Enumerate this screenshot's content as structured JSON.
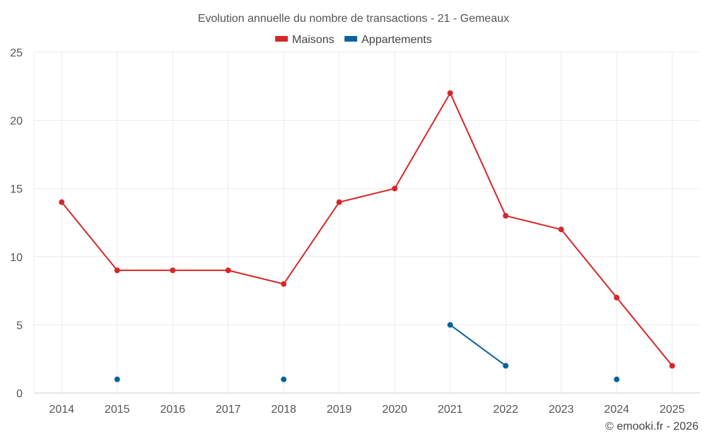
{
  "chart_data": {
    "type": "line",
    "title": "Evolution annuelle du nombre de transactions - 21 - Gemeaux",
    "categories": [
      "2014",
      "2015",
      "2016",
      "2017",
      "2018",
      "2019",
      "2020",
      "2021",
      "2022",
      "2023",
      "2024",
      "2025"
    ],
    "ylim": [
      0,
      25
    ],
    "yticks": [
      0,
      5,
      10,
      15,
      20,
      25
    ],
    "grid": true,
    "legend_position": "top-center",
    "series": [
      {
        "name": "Maisons",
        "color": "#d62728",
        "values": [
          14,
          9,
          9,
          9,
          8,
          14,
          15,
          22,
          13,
          12,
          7,
          2
        ]
      },
      {
        "name": "Appartements",
        "color": "#06639b",
        "values": [
          null,
          1,
          null,
          null,
          1,
          null,
          null,
          5,
          2,
          null,
          1,
          null
        ]
      }
    ]
  },
  "footer": {
    "credit": "© emooki.fr - 2026"
  }
}
